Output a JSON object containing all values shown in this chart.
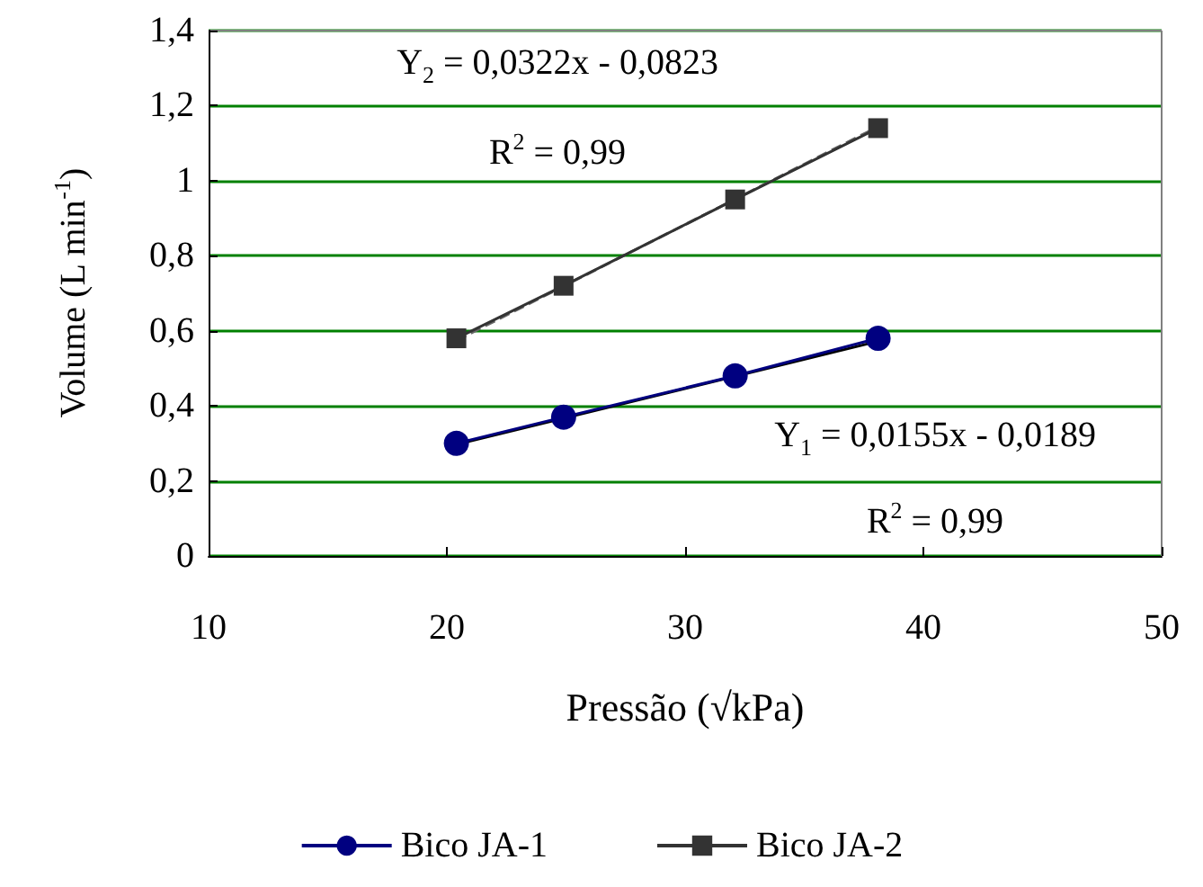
{
  "chart_data": {
    "type": "line",
    "xlabel": "Pressão (√kPa)",
    "ylabel": "Volume (L min$^{-1}$)",
    "xlim": [
      10,
      50
    ],
    "xticks": [
      10,
      20,
      30,
      40,
      50
    ],
    "ylim": [
      0,
      1.4
    ],
    "yticks": [
      0,
      {
        "value": 0.2,
        "label": "0,2"
      },
      {
        "value": 0.4,
        "label": "0,4"
      },
      {
        "value": 0.6,
        "label": "0,6"
      },
      {
        "value": 0.8,
        "label": "0,8"
      },
      1,
      {
        "value": 1.2,
        "label": "1,2"
      },
      {
        "value": 1.4,
        "label": "1,4"
      }
    ],
    "grid": "y",
    "legend": "bottom",
    "series": [
      {
        "name": "Bico JA-1",
        "color": "#000080",
        "marker": "circle",
        "x": [
          20.4,
          24.9,
          32.1,
          38.1
        ],
        "values": [
          0.3,
          0.37,
          0.48,
          0.58
        ]
      },
      {
        "name": "Bico JA-2",
        "color": "#333333",
        "marker": "square",
        "x": [
          20.4,
          24.9,
          32.1,
          38.1
        ],
        "values": [
          0.58,
          0.72,
          0.95,
          1.14
        ]
      },
      {
        "type": "line",
        "color": "#000000",
        "marker": "none",
        "line_style": "solid",
        "x": [
          20.4,
          38.1
        ],
        "values": [
          0.297,
          0.572
        ]
      },
      {
        "type": "line",
        "color": "#666666",
        "marker": "none",
        "line_style": "dashed",
        "x": [
          20.4,
          38.1
        ],
        "values": [
          0.574,
          1.144
        ]
      }
    ],
    "annotations": [
      "Y$_{2}$ = 0,0322x - 0,0823",
      "R$^{2}$ = 0,99",
      "Y$_{1}$ = 0,0155x - 0,0189",
      "R$^{2}$ = 0,99"
    ]
  }
}
